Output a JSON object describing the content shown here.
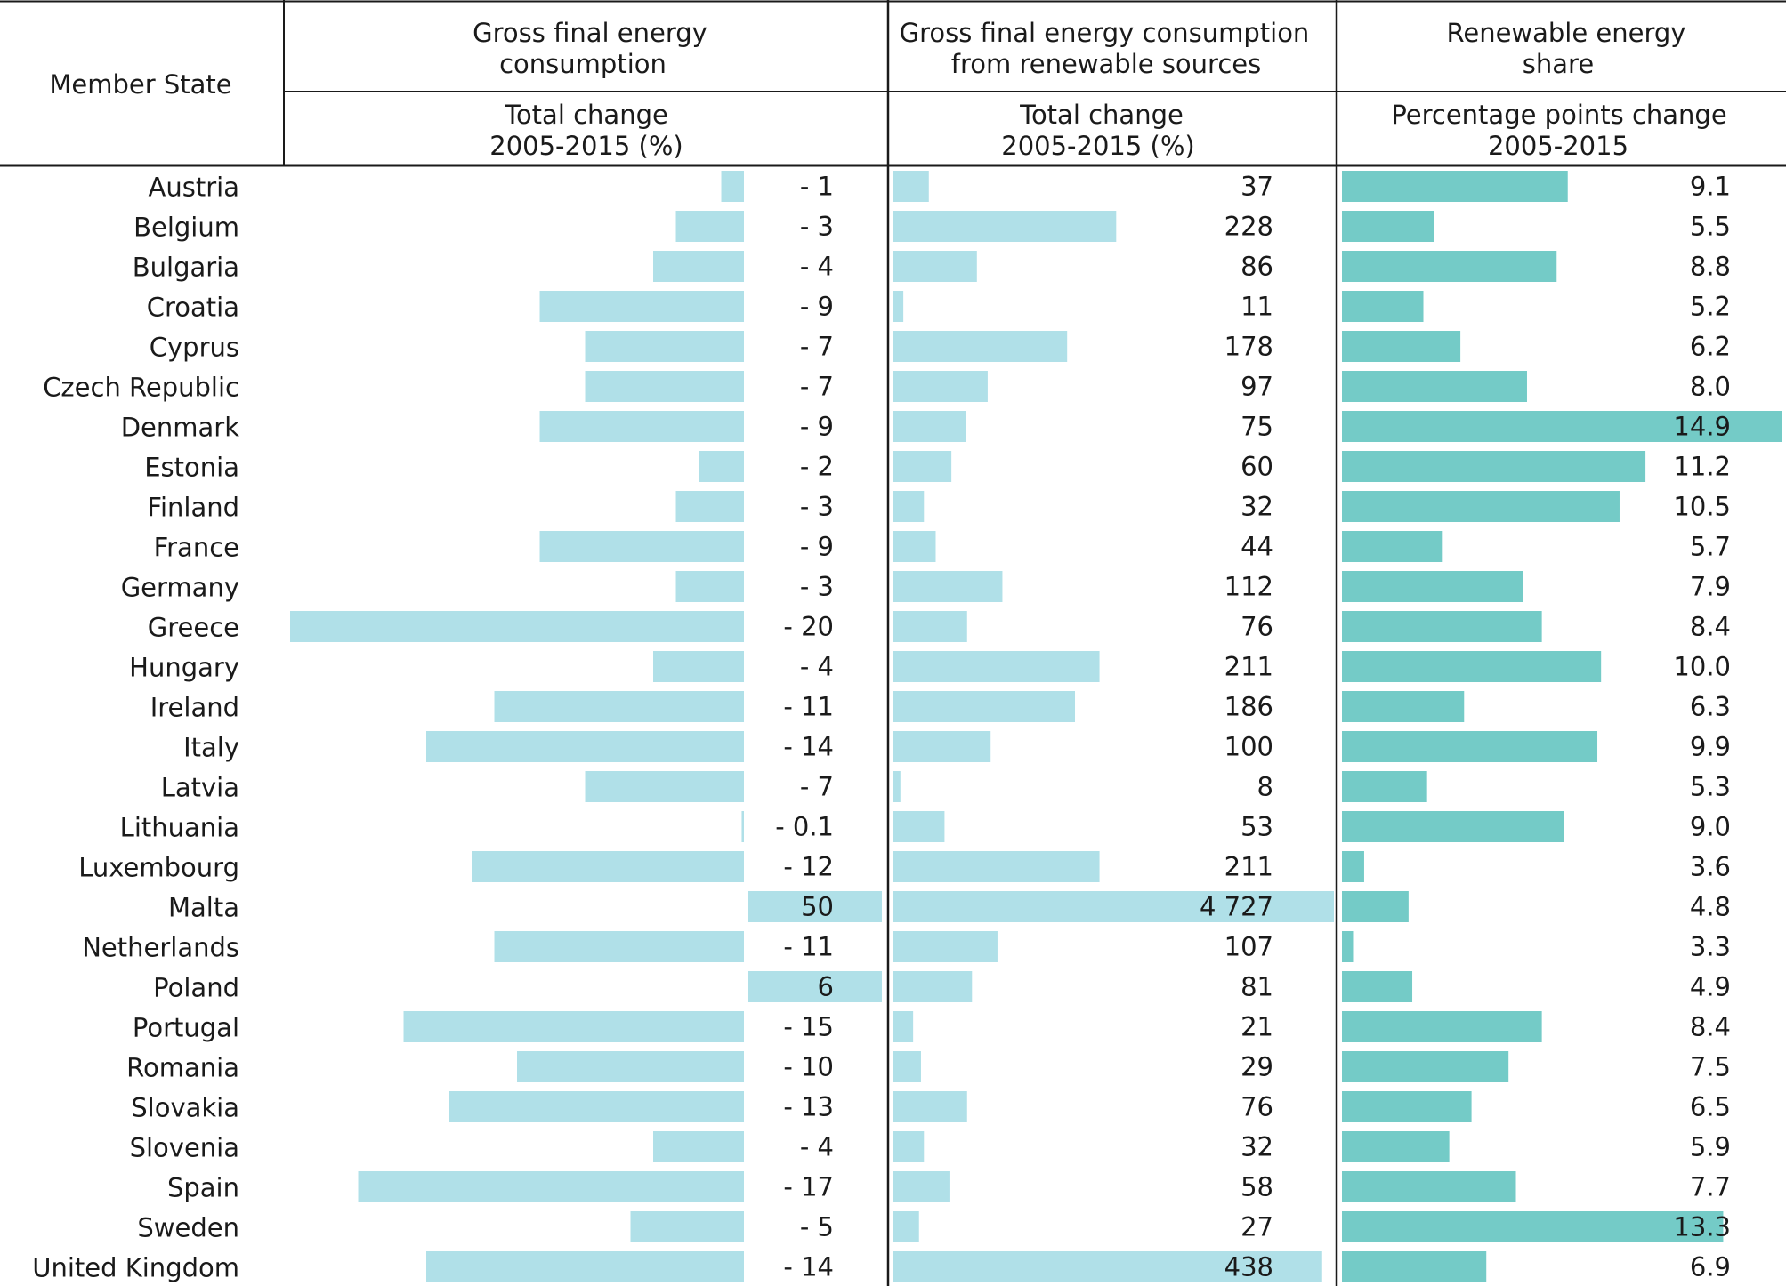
{
  "table": {
    "member_state_header": "Member State",
    "columns": [
      {
        "group": [
          "Gross final energy",
          "consumption"
        ],
        "sub": [
          "Total change",
          "2005-2015 (%)"
        ]
      },
      {
        "group": [
          "Gross final energy consumption",
          "from renewable sources"
        ],
        "sub": [
          "Total change",
          "2005-2015 (%)"
        ]
      },
      {
        "group": [
          "Renewable energy",
          "share"
        ],
        "sub": [
          "Percentage points change",
          "2005-2015"
        ]
      }
    ]
  },
  "chart_data": {
    "type": "bar",
    "orientation": "horizontal",
    "categories": [
      "Austria",
      "Belgium",
      "Bulgaria",
      "Croatia",
      "Cyprus",
      "Czech Republic",
      "Denmark",
      "Estonia",
      "Finland",
      "France",
      "Germany",
      "Greece",
      "Hungary",
      "Ireland",
      "Italy",
      "Latvia",
      "Lithuania",
      "Luxembourg",
      "Malta",
      "Netherlands",
      "Poland",
      "Portugal",
      "Romania",
      "Slovakia",
      "Slovenia",
      "Spain",
      "Sweden",
      "United Kingdom"
    ],
    "series": [
      {
        "name": "Gross final energy consumption — Total change 2005-2015 (%)",
        "values": [
          -1,
          -3,
          -4,
          -9,
          -7,
          -7,
          -9,
          -2,
          -3,
          -9,
          -3,
          -20,
          -4,
          -11,
          -14,
          -7,
          -0.1,
          -12,
          50,
          -11,
          6,
          -15,
          -10,
          -13,
          -4,
          -17,
          -5,
          -14
        ],
        "labels": [
          "- 1",
          "- 3",
          "- 4",
          "- 9",
          "- 7",
          "- 7",
          "- 9",
          "- 2",
          "- 3",
          "- 9",
          "- 3",
          "- 20",
          "- 4",
          "- 11",
          "- 14",
          "- 7",
          "- 0.1",
          "- 12",
          "50",
          "- 11",
          "6",
          "- 15",
          "- 10",
          "- 13",
          "- 4",
          "- 17",
          "- 5",
          "- 14"
        ],
        "axis_min": -20,
        "color": "#b0e0e8"
      },
      {
        "name": "Gross final energy consumption from renewable sources — Total change 2005-2015 (%)",
        "values": [
          37,
          228,
          86,
          11,
          178,
          97,
          75,
          60,
          32,
          44,
          112,
          76,
          211,
          186,
          100,
          8,
          53,
          211,
          4727,
          107,
          81,
          21,
          29,
          76,
          32,
          58,
          27,
          438
        ],
        "labels": [
          "37",
          "228",
          "86",
          "11",
          "178",
          "97",
          "75",
          "60",
          "32",
          "44",
          "112",
          "76",
          "211",
          "186",
          "100",
          "8",
          "53",
          "211",
          "4 727",
          "107",
          "81",
          "21",
          "29",
          "76",
          "32",
          "58",
          "27",
          "438"
        ],
        "axis_max": 450,
        "color": "#b0e0e8"
      },
      {
        "name": "Renewable energy share — Percentage points change 2005-2015",
        "values": [
          9.1,
          5.5,
          8.8,
          5.2,
          6.2,
          8.0,
          14.9,
          11.2,
          10.5,
          5.7,
          7.9,
          8.4,
          10.0,
          6.3,
          9.9,
          5.3,
          9.0,
          3.6,
          4.8,
          3.3,
          4.9,
          8.4,
          7.5,
          6.5,
          5.9,
          7.7,
          13.3,
          6.9
        ],
        "labels": [
          "9.1",
          "5.5",
          "8.8",
          "5.2",
          "6.2",
          "8.0",
          "14.9",
          "11.2",
          "10.5",
          "5.7",
          "7.9",
          "8.4",
          "10.0",
          "6.3",
          "9.9",
          "5.3",
          "9.0",
          "3.6",
          "4.8",
          "3.3",
          "4.9",
          "8.4",
          "7.5",
          "6.5",
          "5.9",
          "7.7",
          "13.3",
          "6.9"
        ],
        "axis_min": 3,
        "axis_max": 14.9,
        "color": "#74cbc7"
      }
    ]
  }
}
